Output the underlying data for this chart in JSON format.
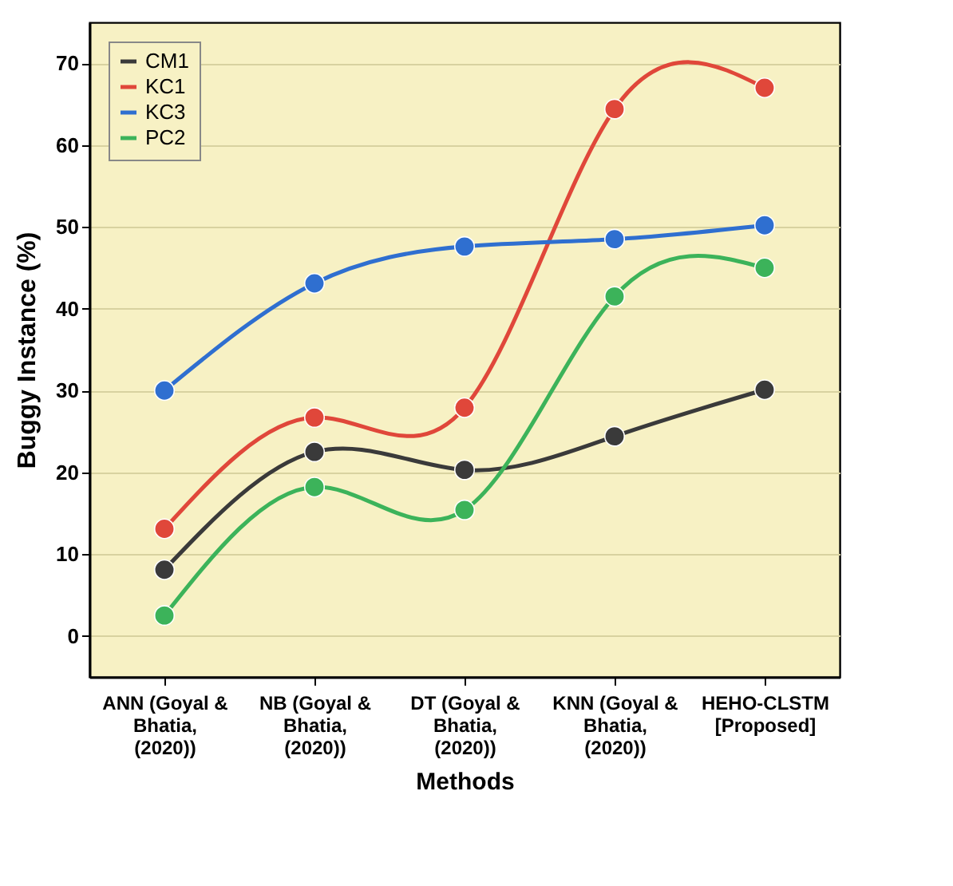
{
  "chart_data": {
    "type": "line",
    "xlabel": "Methods",
    "ylabel": "Buggy Instance (%)",
    "categories": [
      "ANN (Goyal & Bhatia, (2020))",
      "NB (Goyal & Bhatia, (2020))",
      "DT (Goyal & Bhatia, (2020))",
      "KNN (Goyal & Bhatia, (2020))",
      "HEHO-CLSTM [Proposed]"
    ],
    "series": [
      {
        "name": "CM1",
        "color": "#3a3a3a",
        "values": [
          8.1,
          22.5,
          20.3,
          24.4,
          30.1
        ]
      },
      {
        "name": "KC1",
        "color": "#e0473a",
        "values": [
          13.1,
          26.7,
          27.9,
          64.4,
          67.0
        ]
      },
      {
        "name": "KC3",
        "color": "#2f6fd0",
        "values": [
          30.0,
          43.1,
          47.6,
          48.5,
          50.2
        ]
      },
      {
        "name": "PC2",
        "color": "#3cb35a",
        "values": [
          2.5,
          18.2,
          15.4,
          41.5,
          45.0
        ]
      }
    ],
    "ylim": [
      -5,
      75
    ],
    "yticks": [
      0,
      10,
      20,
      30,
      40,
      50,
      60,
      70
    ],
    "grid": true,
    "legend": "top left",
    "marker": "circle",
    "line_style": "solid"
  }
}
